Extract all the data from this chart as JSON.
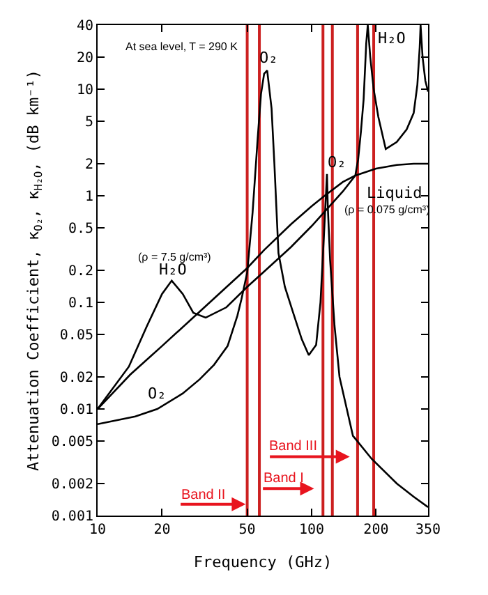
{
  "chart_data": {
    "type": "line",
    "xlabel": "Frequency (GHz)",
    "ylabel": "Attenuation Coefficient, κ$_{O₂}$, κ$_{H₂O}$, (dB km⁻¹)",
    "log": "xy",
    "grid": false,
    "marker": "none",
    "line_style": "solid",
    "xlim": [
      10,
      350
    ],
    "xticks": [
      10,
      20,
      50,
      100,
      200,
      350
    ],
    "ylim": [
      0.001,
      40
    ],
    "yticks": [
      0.001,
      0.002,
      0.005,
      0.01,
      0.02,
      0.05,
      0.1,
      0.2,
      0.5,
      1,
      2,
      5,
      10,
      20,
      40
    ],
    "series": [
      {
        "color": "#000000",
        "x": [
          10,
          14,
          17,
          20,
          22.2,
          25,
          28,
          32,
          40,
          50,
          60,
          80,
          100,
          115,
          140,
          160,
          165,
          170,
          175,
          180,
          183,
          188,
          195,
          205,
          222,
          250,
          278,
          300,
          312,
          320,
          323,
          330,
          340,
          350
        ],
        "values": [
          0.01,
          0.025,
          0.06,
          0.12,
          0.16,
          0.12,
          0.08,
          0.072,
          0.09,
          0.14,
          0.195,
          0.33,
          0.52,
          0.71,
          1.1,
          1.55,
          2.2,
          4,
          8,
          27,
          40,
          20,
          10,
          5.5,
          2.75,
          3.2,
          4.2,
          6,
          11,
          25,
          40,
          20,
          12,
          9.5
        ]
      },
      {
        "color": "#000000",
        "x": [
          10,
          15,
          19,
          25,
          30,
          35,
          40.5,
          45,
          47,
          50,
          53,
          56,
          58,
          60,
          62,
          65,
          67,
          70,
          75,
          82,
          90,
          97,
          105,
          110,
          114,
          118,
          119,
          122,
          128,
          135,
          156,
          191,
          250,
          300,
          350
        ],
        "values": [
          0.0072,
          0.0085,
          0.01,
          0.014,
          0.019,
          0.026,
          0.039,
          0.075,
          0.107,
          0.19,
          0.7,
          3.5,
          9,
          14,
          15,
          6.6,
          2,
          0.29,
          0.14,
          0.08,
          0.045,
          0.032,
          0.04,
          0.1,
          0.4,
          1.6,
          0.8,
          0.25,
          0.06,
          0.02,
          0.0056,
          0.0034,
          0.002,
          0.0015,
          0.0012
        ]
      },
      {
        "color": "#000000",
        "x": [
          10,
          14.2,
          20,
          30,
          50,
          60,
          80,
          100,
          115,
          140,
          160,
          200,
          250,
          300,
          350
        ],
        "values": [
          0.01,
          0.021,
          0.039,
          0.082,
          0.21,
          0.31,
          0.54,
          0.8,
          1.0,
          1.35,
          1.55,
          1.8,
          1.95,
          2.0,
          2.0
        ]
      }
    ],
    "ref_lines": [
      {
        "axis": "x",
        "value": 50,
        "color": "#cc2020"
      },
      {
        "axis": "x",
        "value": 57,
        "color": "#cc2020"
      },
      {
        "axis": "x",
        "value": 113,
        "color": "#cc2020"
      },
      {
        "axis": "x",
        "value": 125,
        "color": "#cc2020"
      },
      {
        "axis": "x",
        "value": 164,
        "color": "#cc2020"
      },
      {
        "axis": "x",
        "value": 195,
        "color": "#cc2020"
      }
    ],
    "annotations": [
      "At sea level, T = 290 K",
      "O₂",
      "O₂",
      "H₂O",
      "Liquid",
      "(ρ = 0.075 g/cm³)",
      "(ρ = 7.5 g/cm³)",
      "H₂O",
      "O₂",
      "Band II",
      "Band I",
      "Band III"
    ]
  }
}
